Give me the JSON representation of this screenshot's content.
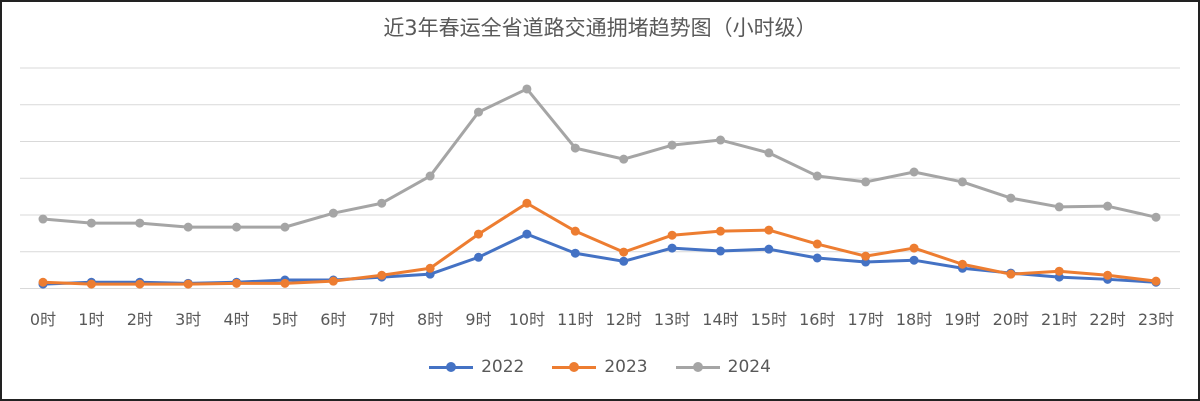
{
  "chart_data": {
    "type": "line",
    "title": "近3年春运全省道路交通拥堵趋势图（小时级）",
    "xlabel": "",
    "ylabel": "",
    "ylim": [
      0,
      6
    ],
    "grid": true,
    "y_tick_labels_shown": false,
    "legend_position": "bottom",
    "categories": [
      "0时",
      "1时",
      "2时",
      "3时",
      "4时",
      "5时",
      "6时",
      "7时",
      "8时",
      "9时",
      "10时",
      "11时",
      "12时",
      "13时",
      "14时",
      "15时",
      "16时",
      "17时",
      "18时",
      "19时",
      "20时",
      "21时",
      "22时",
      "23时"
    ],
    "series": [
      {
        "name": "2022",
        "color": "#4472C4",
        "values": [
          0.12,
          0.17,
          0.17,
          0.14,
          0.17,
          0.23,
          0.23,
          0.31,
          0.39,
          0.85,
          1.48,
          0.96,
          0.74,
          1.1,
          1.02,
          1.07,
          0.83,
          0.72,
          0.77,
          0.55,
          0.42,
          0.31,
          0.25,
          0.17
        ]
      },
      {
        "name": "2023",
        "color": "#ED7D31",
        "values": [
          0.17,
          0.12,
          0.12,
          0.12,
          0.14,
          0.14,
          0.2,
          0.36,
          0.55,
          1.48,
          2.32,
          1.56,
          0.99,
          1.45,
          1.56,
          1.59,
          1.21,
          0.88,
          1.1,
          0.66,
          0.39,
          0.47,
          0.36,
          0.2
        ]
      },
      {
        "name": "2024",
        "color": "#A5A5A5",
        "values": [
          1.89,
          1.78,
          1.78,
          1.67,
          1.67,
          1.67,
          2.05,
          2.32,
          3.06,
          4.8,
          5.43,
          3.82,
          3.52,
          3.9,
          4.04,
          3.69,
          3.06,
          2.9,
          3.17,
          2.9,
          2.46,
          2.22,
          2.24,
          1.94
        ]
      }
    ]
  }
}
